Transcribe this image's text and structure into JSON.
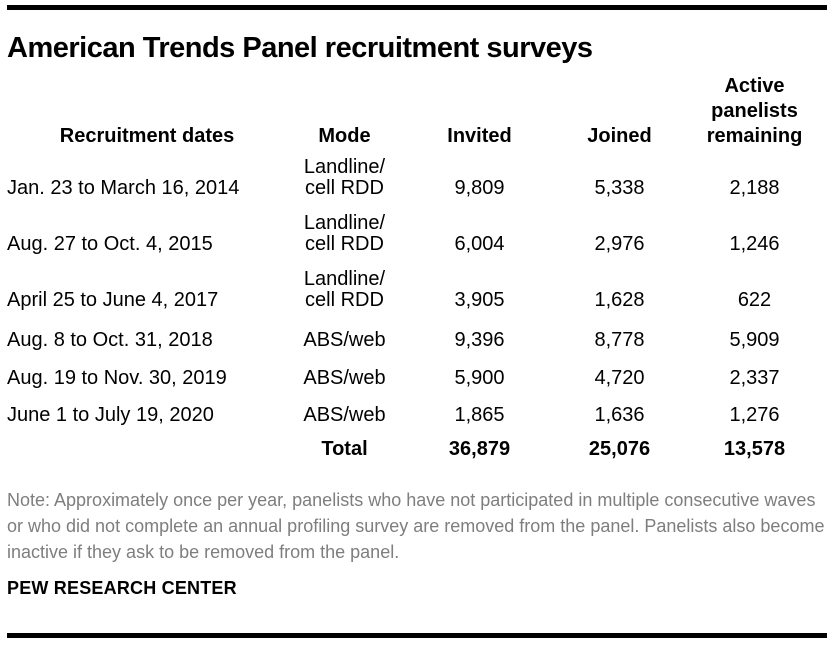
{
  "page": {
    "title": "American Trends Panel recruitment surveys",
    "note": "Note: Approximately once per year, panelists who have not participated in multiple consecutive waves or who did not complete an annual profiling survey are removed from the panel. Panelists also become inactive if they ask to be removed from the panel.",
    "source": "PEW RESEARCH CENTER"
  },
  "table": {
    "headers": {
      "dates": "Recruitment dates",
      "mode": "Mode",
      "invited": "Invited",
      "joined": "Joined",
      "active": "Active\npanelists\nremaining"
    },
    "rows": [
      {
        "dates": "Jan. 23 to March 16, 2014",
        "mode": "Landline/\ncell RDD",
        "invited": "9,809",
        "joined": "5,338",
        "active": "2,188"
      },
      {
        "dates": "Aug. 27 to Oct. 4, 2015",
        "mode": "Landline/\ncell RDD",
        "invited": "6,004",
        "joined": "2,976",
        "active": "1,246"
      },
      {
        "dates": "April 25 to June 4, 2017",
        "mode": "Landline/\ncell RDD",
        "invited": "3,905",
        "joined": "1,628",
        "active": "622"
      },
      {
        "dates": "Aug. 8 to Oct. 31, 2018",
        "mode": "ABS/web",
        "invited": "9,396",
        "joined": "8,778",
        "active": "5,909"
      },
      {
        "dates": "Aug. 19 to Nov. 30, 2019",
        "mode": "ABS/web",
        "invited": "5,900",
        "joined": "4,720",
        "active": "2,337"
      },
      {
        "dates": "June 1 to July 19, 2020",
        "mode": "ABS/web",
        "invited": "1,865",
        "joined": "1,636",
        "active": "1,276"
      }
    ],
    "total": {
      "label": "Total",
      "invited": "36,879",
      "joined": "25,076",
      "active": "13,578"
    }
  },
  "chart_data": {
    "type": "table",
    "title": "American Trends Panel recruitment surveys",
    "columns": [
      "Recruitment dates",
      "Mode",
      "Invited",
      "Joined",
      "Active panelists remaining"
    ],
    "rows": [
      [
        "Jan. 23 to March 16, 2014",
        "Landline/cell RDD",
        9809,
        5338,
        2188
      ],
      [
        "Aug. 27 to Oct. 4, 2015",
        "Landline/cell RDD",
        6004,
        2976,
        1246
      ],
      [
        "April 25 to June 4, 2017",
        "Landline/cell RDD",
        3905,
        1628,
        622
      ],
      [
        "Aug. 8 to Oct. 31, 2018",
        "ABS/web",
        9396,
        8778,
        5909
      ],
      [
        "Aug. 19 to Nov. 30, 2019",
        "ABS/web",
        5900,
        4720,
        2337
      ],
      [
        "June 1 to July 19, 2020",
        "ABS/web",
        1865,
        1636,
        1276
      ]
    ],
    "total_row": [
      "",
      "Total",
      36879,
      25076,
      13578
    ],
    "note": "Note: Approximately once per year, panelists who have not participated in multiple consecutive waves or who did not complete an annual profiling survey are removed from the panel. Panelists also become inactive if they ask to be removed from the panel.",
    "source": "PEW RESEARCH CENTER",
    "colors": {
      "text": "#000000",
      "note_text": "#7e7e80",
      "rule": "#000000",
      "background": "#ffffff"
    }
  }
}
